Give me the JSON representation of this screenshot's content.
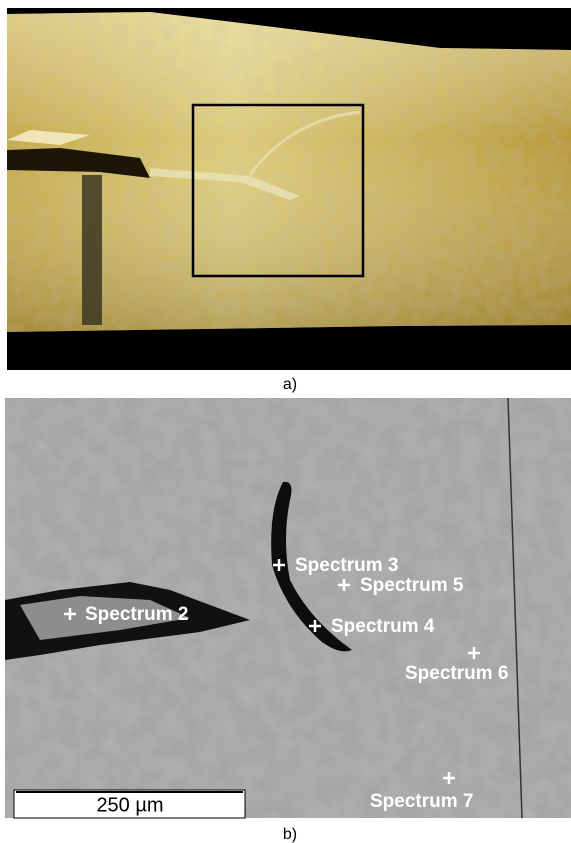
{
  "panels": [
    {
      "label": "a)"
    },
    {
      "label": "b)",
      "spectra": [
        "Spectrum 2",
        "Spectrum 3",
        "Spectrum 4",
        "Spectrum 5",
        "Spectrum 6",
        "Spectrum 7"
      ],
      "scale_bar": "250 µm"
    }
  ]
}
